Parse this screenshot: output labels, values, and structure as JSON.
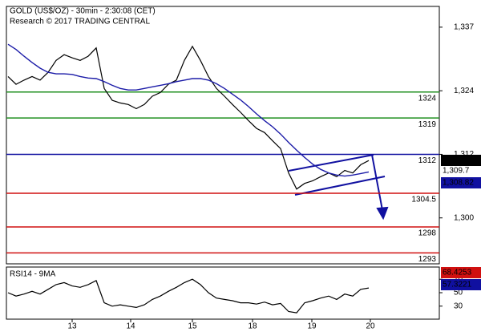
{
  "chart_data": [
    {
      "type": "line",
      "title": "GOLD (US$/OZ) - 30min - 2:30:08 (CET)",
      "subtitle": "Research © 2017 TRADING CENTRAL",
      "x": [
        0,
        1,
        2,
        3,
        4,
        5,
        6,
        7,
        8,
        9,
        10,
        11,
        12,
        13,
        14,
        15,
        16,
        17,
        18,
        19,
        20,
        21,
        22,
        23,
        24,
        25,
        26,
        27,
        28,
        29,
        30,
        31,
        32,
        33,
        34,
        35,
        36,
        37,
        38,
        39,
        40,
        41,
        42,
        43,
        44,
        45
      ],
      "xlim": [
        -0.2,
        53.8
      ],
      "ylim": [
        1290.9,
        1340.5
      ],
      "yticks": [
        {
          "value": 1336.5,
          "label": "1,337"
        },
        {
          "value": 1324.25,
          "label": "1,324"
        },
        {
          "value": 1312,
          "label": "1,312"
        },
        {
          "value": 1299.75,
          "label": "1,300"
        }
      ],
      "series": [
        {
          "name": "GOLD",
          "color": "#000000",
          "values": [
            1327.0,
            1325.5,
            1326.3,
            1327.0,
            1326.3,
            1327.8,
            1330.1,
            1331.2,
            1330.6,
            1330.1,
            1330.9,
            1332.5,
            1324.7,
            1322.4,
            1321.9,
            1321.6,
            1320.8,
            1321.6,
            1323.2,
            1323.9,
            1325.5,
            1326.3,
            1330.1,
            1332.8,
            1330.1,
            1327.0,
            1324.7,
            1323.2,
            1321.6,
            1320.1,
            1318.5,
            1317.0,
            1316.2,
            1314.6,
            1313.1,
            1308.4,
            1305.3,
            1306.4,
            1306.9,
            1307.7,
            1308.4,
            1307.7,
            1308.9,
            1308.4,
            1310.0,
            1310.8
          ]
        },
        {
          "name": "MA",
          "color": "#1c1ca8",
          "values": [
            1333.2,
            1332.2,
            1330.9,
            1329.7,
            1328.6,
            1327.8,
            1327.5,
            1327.5,
            1327.4,
            1327.0,
            1326.7,
            1326.6,
            1326.0,
            1325.3,
            1324.7,
            1324.4,
            1324.4,
            1324.7,
            1325.0,
            1325.3,
            1325.6,
            1326.0,
            1326.3,
            1326.6,
            1326.6,
            1326.3,
            1325.6,
            1324.7,
            1323.6,
            1322.5,
            1321.2,
            1319.8,
            1318.5,
            1317.3,
            1315.9,
            1314.3,
            1312.8,
            1311.4,
            1310.1,
            1309.1,
            1308.4,
            1308.0,
            1307.8,
            1308.0,
            1308.3,
            1308.6
          ]
        }
      ],
      "levels": {
        "values": [
          1324,
          1319,
          1312,
          1304.5,
          1298,
          1293
        ],
        "colors": [
          "#1f8f1f",
          "#1f8f1f",
          "#1010a0",
          "#d01010",
          "#d01010",
          "#d01010"
        ]
      },
      "price_tags": {
        "labels": [
          "1,310.78",
          "1,309.7",
          "1,308.82"
        ],
        "colors": [
          "#000000",
          "#d01010",
          "#1010a0"
        ]
      }
    },
    {
      "type": "line",
      "title": "RSI14 - 9MA",
      "x": [
        0,
        1,
        2,
        3,
        4,
        5,
        6,
        7,
        8,
        9,
        10,
        11,
        12,
        13,
        14,
        15,
        16,
        17,
        18,
        19,
        20,
        21,
        22,
        23,
        24,
        25,
        26,
        27,
        28,
        29,
        30,
        31,
        32,
        33,
        34,
        35,
        36,
        37,
        38,
        39,
        40,
        41,
        42,
        43,
        44,
        45
      ],
      "xlim": [
        -0.2,
        53.8
      ],
      "xticks": [
        {
          "value": 8,
          "label": "13"
        },
        {
          "value": 15.3,
          "label": "14"
        },
        {
          "value": 23,
          "label": "15"
        },
        {
          "value": 30.5,
          "label": "18"
        },
        {
          "value": 37.9,
          "label": "19"
        },
        {
          "value": 45.2,
          "label": "20"
        }
      ],
      "ylim": [
        10.6,
        88.2
      ],
      "yticks": [
        30,
        50,
        70
      ],
      "series": [
        {
          "name": "RSI14",
          "color": "#000000",
          "values": [
            50,
            45,
            48,
            52,
            48,
            55,
            62,
            65,
            60,
            58,
            62,
            68,
            35,
            30,
            32,
            30,
            28,
            32,
            40,
            45,
            52,
            58,
            65,
            70,
            62,
            50,
            42,
            40,
            38,
            35,
            35,
            33,
            36,
            32,
            34,
            22,
            20,
            35,
            38,
            42,
            45,
            40,
            48,
            45,
            55,
            57
          ]
        }
      ],
      "price_tags": {
        "labels": [
          "68.4253",
          "57.3221"
        ],
        "colors": [
          "#d01010",
          "#1010a0"
        ]
      }
    }
  ]
}
